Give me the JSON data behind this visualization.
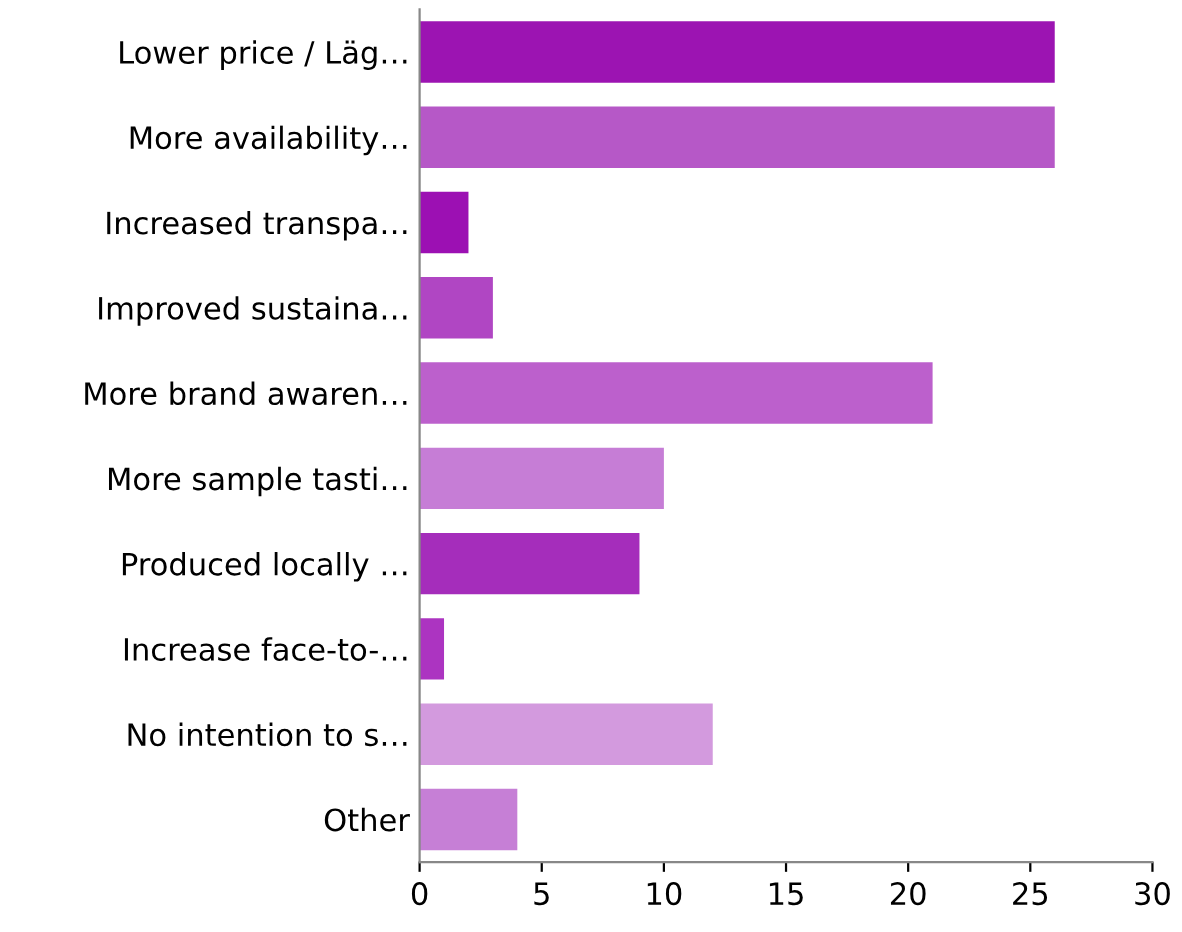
{
  "chart_data": {
    "type": "bar",
    "orientation": "horizontal",
    "categories": [
      "Lower price / Läg…",
      "More availability…",
      "Increased transpa…",
      "Improved sustaina…",
      "More brand awaren…",
      "More sample tasti…",
      "Produced locally …",
      "Increase face-to-…",
      "No intention to s…",
      "Other"
    ],
    "values": [
      26,
      26,
      2,
      3,
      21,
      10,
      9,
      1,
      12,
      4
    ],
    "colors": [
      "#9c14b2",
      "#b658c7",
      "#9c10b3",
      "#b046c3",
      "#bc60cc",
      "#c67dd6",
      "#a52dbb",
      "#ac34c1",
      "#d39ade",
      "#c67fd6"
    ],
    "xlim": [
      0,
      30
    ],
    "xticks": [
      0,
      5,
      10,
      15,
      20,
      25,
      30
    ],
    "grid": false
  }
}
